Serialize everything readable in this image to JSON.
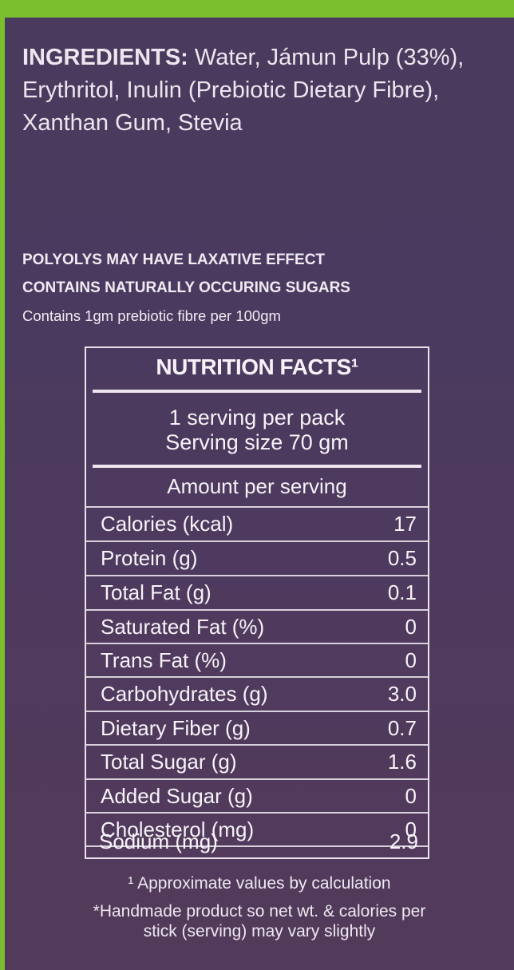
{
  "ingredients": {
    "label": "INGREDIENTS:",
    "text": " Water, Jámun Pulp (33%), Erythritol, Inulin (Prebiotic Dietary Fibre), Xanthan Gum, Stevia"
  },
  "warnings": [
    "POLYOLYS MAY HAVE LAXATIVE EFFECT",
    "CONTAINS NATURALLY OCCURING SUGARS",
    "Contains 1gm prebiotic fibre per 100gm"
  ],
  "nutrition": {
    "title": "NUTRITION FACTS¹",
    "servings_per_pack": "1 serving per pack",
    "serving_size": "Serving size 70 gm",
    "amount_label": "Amount per serving",
    "rows": [
      {
        "name": "Calories (kcal)",
        "value": "17"
      },
      {
        "name": "Protein (g)",
        "value": "0.5"
      },
      {
        "name": "Total Fat (g)",
        "value": "0.1"
      },
      {
        "name": "Saturated Fat (%)",
        "value": "0"
      },
      {
        "name": "Trans Fat (%)",
        "value": "0"
      },
      {
        "name": "Carbohydrates (g)",
        "value": "3.0"
      },
      {
        "name": "Dietary Fiber (g)",
        "value": "0.7"
      },
      {
        "name": "Total Sugar (g)",
        "value": "1.6"
      },
      {
        "name": "Added Sugar (g)",
        "value": "0"
      },
      {
        "name": "Cholesterol (mg)",
        "value": "0"
      },
      {
        "name": "Sodium (mg)",
        "value": "2.9"
      }
    ]
  },
  "footnotes": {
    "approx": "¹ Approximate values by calculation",
    "handmade": "*Handmade product so net wt. & calories per stick (serving) may vary slightly"
  },
  "colors": {
    "panel": "#4b3a5f",
    "border_green": "#7bbf2e",
    "text": "#f3eef4"
  }
}
